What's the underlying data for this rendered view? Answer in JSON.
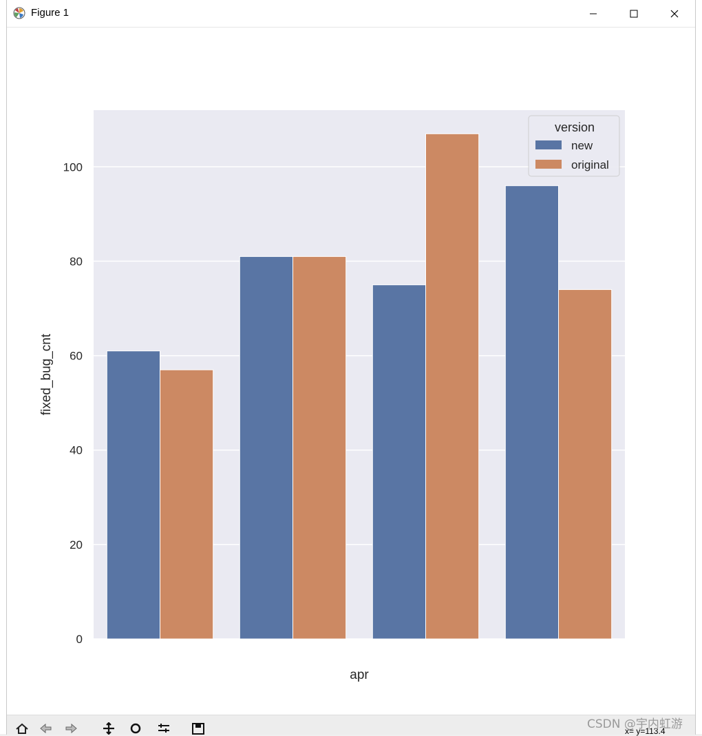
{
  "window": {
    "title": "Figure 1"
  },
  "toolbar": {
    "tools": [
      "home-icon",
      "back-icon",
      "forward-icon",
      "pan-icon",
      "zoom-icon",
      "configure-icon",
      "save-icon"
    ],
    "coords_text": "x= y=113.4"
  },
  "watermark": "CSDN @宇内虹游",
  "chart_data": {
    "type": "bar",
    "categories": [
      "",
      "",
      "",
      ""
    ],
    "xlabel": "apr",
    "ylabel": "fixed_bug_cnt",
    "ylim": [
      0,
      112
    ],
    "yticks": [
      0,
      20,
      40,
      60,
      80,
      100
    ],
    "grid": true,
    "legend": {
      "title": "version",
      "placement": "upper-right"
    },
    "series": [
      {
        "name": "new",
        "color": "#5975a4",
        "values": [
          61,
          81,
          75,
          96
        ]
      },
      {
        "name": "original",
        "color": "#cc8963",
        "values": [
          57,
          81,
          107,
          74
        ]
      }
    ]
  }
}
